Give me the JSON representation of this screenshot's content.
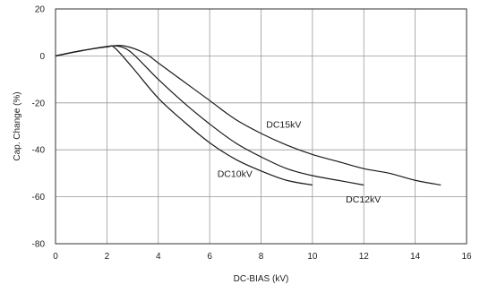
{
  "chart_data": {
    "type": "line",
    "title": "",
    "xlabel": "DC-BIAS (kV)",
    "ylabel": "Cap. Change (%)",
    "xlim": [
      0,
      16
    ],
    "ylim": [
      -80,
      20
    ],
    "x_ticks": [
      0,
      2,
      4,
      6,
      8,
      10,
      12,
      14,
      16
    ],
    "y_ticks": [
      20,
      0,
      -20,
      -40,
      -60,
      -80
    ],
    "grid": true,
    "series": [
      {
        "name": "DC10kV",
        "x": [
          0,
          1,
          2,
          2.3,
          3,
          4,
          5,
          6,
          7,
          8,
          9,
          10
        ],
        "y": [
          0,
          2.2,
          3.8,
          3.5,
          -5,
          -18,
          -28,
          -37,
          -44,
          -49,
          -53,
          -55
        ]
      },
      {
        "name": "DC12kV",
        "x": [
          0,
          1,
          2,
          2.5,
          3,
          4,
          5,
          6,
          7,
          8,
          9,
          10,
          11,
          12
        ],
        "y": [
          0,
          2.2,
          4.0,
          4.0,
          1,
          -10,
          -20,
          -29,
          -37,
          -43,
          -48,
          -51,
          -53,
          -55
        ]
      },
      {
        "name": "DC15kV",
        "x": [
          0,
          1,
          2,
          2.7,
          3.5,
          4,
          5,
          6,
          7,
          8,
          9,
          10,
          11,
          12,
          13,
          14,
          15
        ],
        "y": [
          0,
          2.2,
          4.0,
          4.2,
          1,
          -3,
          -11,
          -19,
          -27,
          -33,
          -38,
          -42,
          -45,
          -48,
          -50,
          -53,
          -55
        ]
      }
    ],
    "series_labels": [
      {
        "text": "DC15kV",
        "x": 8.2,
        "y": -30.5
      },
      {
        "text": "DC10kV",
        "x": 6.3,
        "y": -51.5
      },
      {
        "text": "DC12kV",
        "x": 11.3,
        "y": -62.5
      }
    ]
  }
}
